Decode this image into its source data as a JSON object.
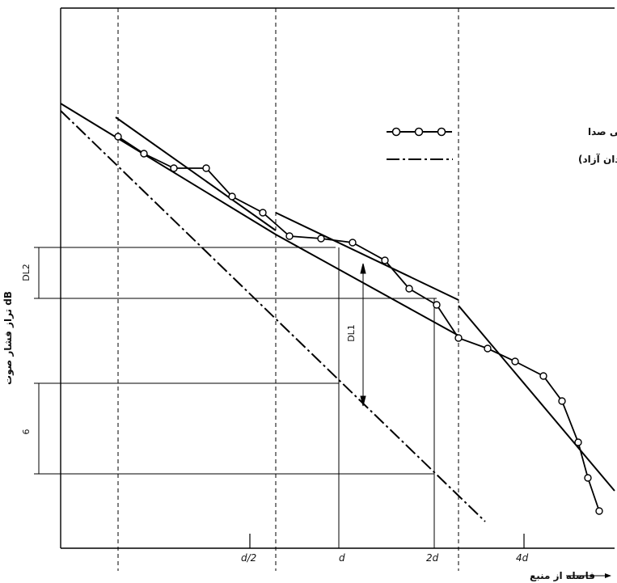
{
  "chart_data": {
    "type": "line",
    "title": "",
    "xlabel": "فاصله از منبع",
    "ylabel": "dB  تراز فشار صوت",
    "x_ticks": [
      "d/2",
      "d",
      "2d",
      "4d"
    ],
    "legend": {
      "placement": "top-right",
      "entries": [
        {
          "name": "منحنی انتشار فضایی صدا",
          "style": "line-with-circles"
        },
        {
          "name": "بدون بازتاب( میدان آزاد)",
          "style": "dash-dot"
        }
      ]
    },
    "dimension_labels": {
      "dl2": "DL2",
      "dl1": "DL1",
      "six": "6"
    },
    "series": [
      {
        "name": "منحنی انتشار فضایی صدا",
        "points": [
          [
            146,
            169
          ],
          [
            178,
            190
          ],
          [
            215,
            208
          ],
          [
            255,
            208
          ],
          [
            287,
            243
          ],
          [
            325,
            263
          ],
          [
            358,
            292
          ],
          [
            397,
            295
          ],
          [
            436,
            300
          ],
          [
            476,
            322
          ],
          [
            506,
            357
          ],
          [
            540,
            377
          ],
          [
            567,
            418
          ],
          [
            603,
            431
          ],
          [
            637,
            447
          ],
          [
            672,
            465
          ],
          [
            695,
            496
          ],
          [
            715,
            547
          ],
          [
            727,
            591
          ],
          [
            741,
            632
          ]
        ]
      }
    ]
  }
}
